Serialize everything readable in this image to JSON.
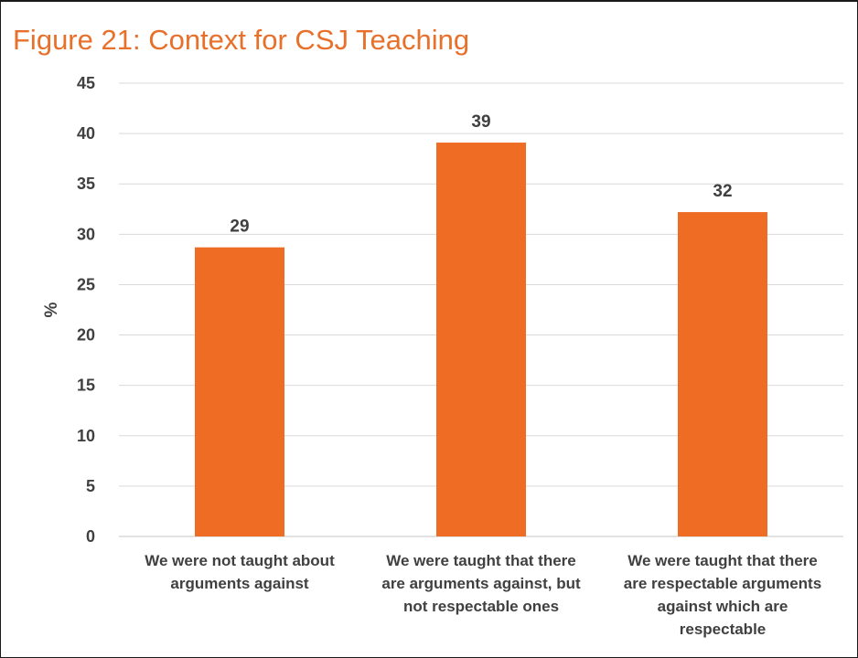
{
  "chart_data": {
    "type": "bar",
    "title": "Figure 21: Context for CSJ Teaching",
    "ylabel": "%",
    "xlabel": "",
    "ylim": [
      0,
      45
    ],
    "yticks": [
      0,
      5,
      10,
      15,
      20,
      25,
      30,
      35,
      40,
      45
    ],
    "grid": true,
    "legend": "none",
    "bar_color": "#ee6c24",
    "title_color": "#e8702a",
    "categories": [
      [
        "We were not taught about",
        "arguments against"
      ],
      [
        "We were taught that there",
        "are arguments against, but",
        "not respectable ones"
      ],
      [
        "We were taught that there",
        "are respectable arguments",
        "against which are",
        "respectable"
      ]
    ],
    "values": [
      29,
      39,
      32
    ],
    "plotted_values": [
      28.7,
      39.1,
      32.2
    ],
    "data_labels": [
      "29",
      "39",
      "32"
    ]
  }
}
